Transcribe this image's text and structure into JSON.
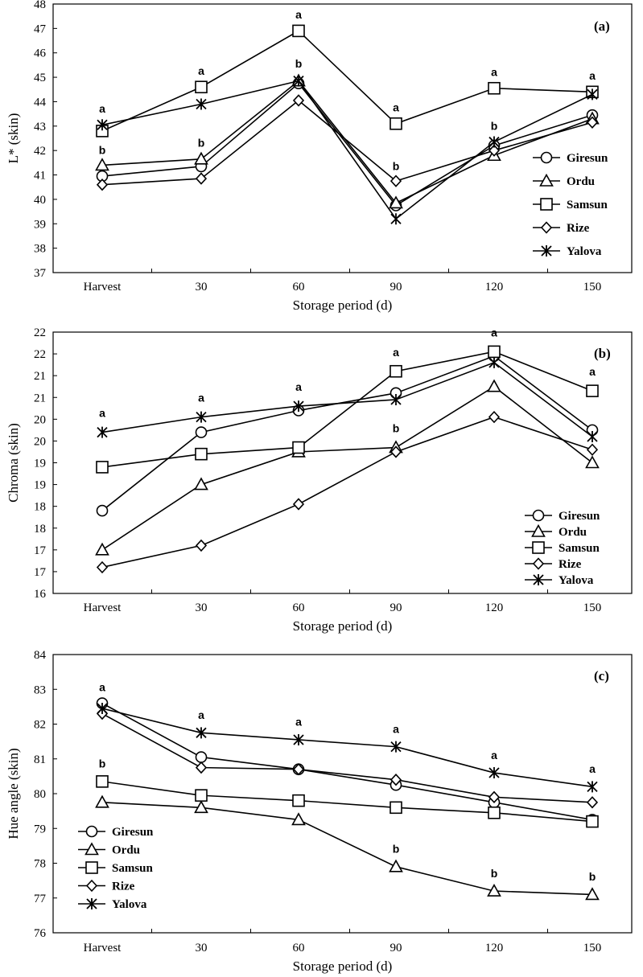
{
  "colors": {
    "line": "#000000",
    "marker_fill": "#ffffff",
    "background": "#ffffff"
  },
  "chart_data": [
    {
      "type": "line",
      "panel_label": "(a)",
      "xlabel": "Storage period (d)",
      "ylabel": "L* (skin)",
      "categories": [
        "Harvest",
        "30",
        "60",
        "90",
        "120",
        "150"
      ],
      "ylim": [
        37,
        48
      ],
      "yticks": [
        37,
        38,
        39,
        40,
        41,
        42,
        43,
        44,
        45,
        46,
        47,
        48
      ],
      "ytick_labels": [
        "37",
        "38",
        "39",
        "40",
        "41",
        "42",
        "43",
        "44",
        "45",
        "46",
        "47",
        "48"
      ],
      "legend_position": "right",
      "series": [
        {
          "name": "Giresun",
          "marker": "circle",
          "values": [
            40.95,
            41.35,
            44.75,
            39.75,
            42.2,
            43.45
          ]
        },
        {
          "name": "Ordu",
          "marker": "triangle",
          "values": [
            41.4,
            41.65,
            44.85,
            39.85,
            41.8,
            43.3
          ]
        },
        {
          "name": "Samsun",
          "marker": "square",
          "values": [
            42.8,
            44.6,
            46.9,
            43.1,
            44.55,
            44.4
          ]
        },
        {
          "name": "Rize",
          "marker": "diamond",
          "values": [
            40.6,
            40.85,
            44.05,
            40.75,
            42.0,
            43.15
          ]
        },
        {
          "name": "Yalova",
          "marker": "asterisk",
          "values": [
            43.05,
            43.9,
            44.85,
            39.2,
            42.35,
            44.3
          ]
        }
      ],
      "annotations": [
        {
          "category": "Harvest",
          "y": 43.55,
          "text": "a"
        },
        {
          "category": "Harvest",
          "y": 41.85,
          "text": "b"
        },
        {
          "category": "30",
          "y": 45.1,
          "text": "a"
        },
        {
          "category": "30",
          "y": 42.15,
          "text": "b"
        },
        {
          "category": "60",
          "y": 47.4,
          "text": "a"
        },
        {
          "category": "60",
          "y": 45.4,
          "text": "b"
        },
        {
          "category": "90",
          "y": 43.6,
          "text": "a"
        },
        {
          "category": "90",
          "y": 41.2,
          "text": "b"
        },
        {
          "category": "120",
          "y": 45.05,
          "text": "a"
        },
        {
          "category": "120",
          "y": 42.85,
          "text": "b"
        },
        {
          "category": "150",
          "y": 44.9,
          "text": "a"
        }
      ]
    },
    {
      "type": "line",
      "panel_label": "(b)",
      "xlabel": "Storage period (d)",
      "ylabel": "Chroma (skin)",
      "categories": [
        "Harvest",
        "30",
        "60",
        "90",
        "120",
        "150"
      ],
      "ylim": [
        16,
        22
      ],
      "yticks": [
        16,
        16.5,
        17,
        17.5,
        18,
        18.5,
        19,
        19.5,
        20,
        20.5,
        21,
        21.5,
        22
      ],
      "ytick_labels": [
        "16",
        "17",
        "17",
        "18",
        "18",
        "19",
        "19",
        "20",
        "20",
        "21",
        "21",
        "22",
        "22"
      ],
      "legend_position": "bottom-right",
      "series": [
        {
          "name": "Giresun",
          "marker": "circle",
          "values": [
            17.9,
            19.7,
            20.2,
            20.6,
            21.45,
            19.75
          ]
        },
        {
          "name": "Ordu",
          "marker": "triangle",
          "values": [
            17.0,
            18.5,
            19.25,
            19.35,
            20.75,
            19.0
          ]
        },
        {
          "name": "Samsun",
          "marker": "square",
          "values": [
            18.9,
            19.2,
            19.35,
            21.1,
            21.55,
            20.65
          ]
        },
        {
          "name": "Rize",
          "marker": "diamond",
          "values": [
            16.6,
            17.1,
            18.05,
            19.25,
            20.05,
            19.3
          ]
        },
        {
          "name": "Yalova",
          "marker": "asterisk",
          "values": [
            19.7,
            20.05,
            20.3,
            20.45,
            21.3,
            19.6
          ]
        }
      ],
      "annotations": [
        {
          "category": "Harvest",
          "y": 20.05,
          "text": "a"
        },
        {
          "category": "30",
          "y": 20.4,
          "text": "a"
        },
        {
          "category": "60",
          "y": 20.65,
          "text": "a"
        },
        {
          "category": "90",
          "y": 21.45,
          "text": "a"
        },
        {
          "category": "90",
          "y": 19.7,
          "text": "b"
        },
        {
          "category": "120",
          "y": 21.9,
          "text": "a"
        },
        {
          "category": "150",
          "y": 21.0,
          "text": "a"
        }
      ]
    },
    {
      "type": "line",
      "panel_label": "(c)",
      "xlabel": "Storage period (d)",
      "ylabel": "Hue angle (skin)",
      "categories": [
        "Harvest",
        "30",
        "60",
        "90",
        "120",
        "150"
      ],
      "ylim": [
        76,
        84
      ],
      "yticks": [
        76,
        77,
        78,
        79,
        80,
        81,
        82,
        83,
        84
      ],
      "ytick_labels": [
        "76",
        "77",
        "78",
        "79",
        "80",
        "81",
        "82",
        "83",
        "84"
      ],
      "legend_position": "bottom-left",
      "series": [
        {
          "name": "Giresun",
          "marker": "circle",
          "values": [
            82.6,
            81.05,
            80.7,
            80.25,
            79.75,
            79.25
          ]
        },
        {
          "name": "Ordu",
          "marker": "triangle",
          "values": [
            79.75,
            79.6,
            79.25,
            77.9,
            77.2,
            77.1
          ]
        },
        {
          "name": "Samsun",
          "marker": "square",
          "values": [
            80.35,
            79.95,
            79.8,
            79.6,
            79.45,
            79.2
          ]
        },
        {
          "name": "Rize",
          "marker": "diamond",
          "values": [
            82.3,
            80.75,
            80.7,
            80.4,
            79.9,
            79.75
          ]
        },
        {
          "name": "Yalova",
          "marker": "asterisk",
          "values": [
            82.45,
            81.75,
            81.55,
            81.35,
            80.6,
            80.2
          ]
        }
      ],
      "annotations": [
        {
          "category": "Harvest",
          "y": 82.95,
          "text": "a"
        },
        {
          "category": "Harvest",
          "y": 80.75,
          "text": "b"
        },
        {
          "category": "30",
          "y": 82.15,
          "text": "a"
        },
        {
          "category": "60",
          "y": 81.95,
          "text": "a"
        },
        {
          "category": "90",
          "y": 81.75,
          "text": "a"
        },
        {
          "category": "90",
          "y": 78.3,
          "text": "b"
        },
        {
          "category": "120",
          "y": 81.0,
          "text": "a"
        },
        {
          "category": "120",
          "y": 77.6,
          "text": "b"
        },
        {
          "category": "150",
          "y": 80.6,
          "text": "a"
        },
        {
          "category": "150",
          "y": 77.5,
          "text": "b"
        }
      ]
    }
  ]
}
